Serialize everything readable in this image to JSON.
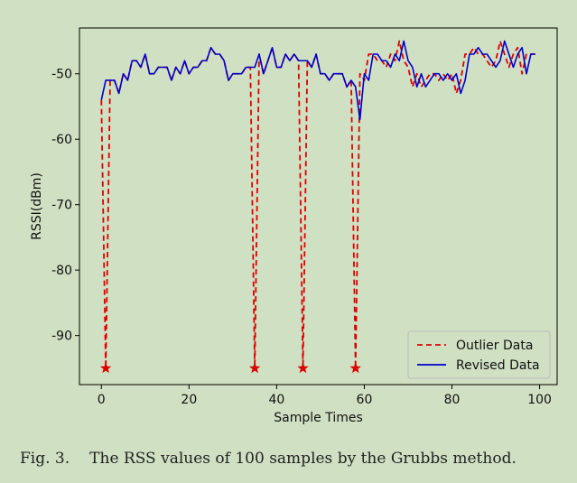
{
  "chart_data": {
    "type": "line",
    "xlabel": "Sample Times",
    "ylabel": "RSSI(dBm)",
    "xlim": [
      -5,
      104
    ],
    "ylim": [
      -97.5,
      -43
    ],
    "x_ticks": [
      0,
      20,
      40,
      60,
      80,
      100
    ],
    "y_ticks": [
      -90,
      -80,
      -70,
      -60,
      -50
    ],
    "legend_position": "lower-right",
    "series": [
      {
        "name": "Outlier Data",
        "style": "dashed",
        "color": "#dd0000",
        "x": [
          0,
          1,
          2,
          3,
          4,
          5,
          6,
          7,
          8,
          9,
          10,
          11,
          12,
          13,
          14,
          15,
          16,
          17,
          18,
          19,
          20,
          21,
          22,
          23,
          24,
          25,
          26,
          27,
          28,
          29,
          30,
          31,
          32,
          33,
          34,
          35,
          36,
          37,
          38,
          39,
          40,
          41,
          42,
          43,
          44,
          45,
          46,
          47,
          48,
          49,
          50,
          51,
          52,
          53,
          54,
          55,
          56,
          57,
          58,
          59,
          60,
          61,
          62,
          63,
          64,
          65,
          66,
          67,
          68,
          69,
          70,
          71,
          72,
          73,
          74,
          75,
          76,
          77,
          78,
          79,
          80,
          81,
          82,
          83,
          84,
          85,
          86,
          87,
          88,
          89,
          90,
          91,
          92,
          93,
          94,
          95,
          96,
          97,
          98,
          99
        ],
        "values": [
          -54,
          -95,
          -51,
          -51,
          -53,
          -50,
          -51,
          -48,
          -48,
          -49,
          -47,
          -50,
          -50,
          -49,
          -49,
          -49,
          -51,
          -49,
          -50,
          -48,
          -50,
          -49,
          -49,
          -48,
          -48,
          -46,
          -47,
          -47,
          -48,
          -51,
          -50,
          -50,
          -50,
          -49,
          -49,
          -95,
          -47,
          -50,
          -48,
          -46,
          -49,
          -49,
          -47,
          -48,
          -47,
          -48,
          -95,
          -48,
          -49,
          -47,
          -50,
          -50,
          -51,
          -50,
          -50,
          -50,
          -52,
          -51,
          -95,
          -50,
          -51,
          -47,
          -47,
          -48,
          -48,
          -49,
          -47,
          -48,
          -45,
          -48,
          -49,
          -52,
          -50,
          -52,
          -51,
          -50,
          -50,
          -51,
          -50,
          -51,
          -50,
          -53,
          -51,
          -47,
          -47,
          -46,
          -47,
          -47,
          -48,
          -49,
          -48,
          -45,
          -47,
          -49,
          -47,
          -46,
          -50,
          -47,
          -47,
          -47
        ]
      },
      {
        "name": "Revised Data",
        "style": "solid",
        "color": "#0000cc",
        "x": [
          0,
          1,
          2,
          3,
          4,
          5,
          6,
          7,
          8,
          9,
          10,
          11,
          12,
          13,
          14,
          15,
          16,
          17,
          18,
          19,
          20,
          21,
          22,
          23,
          24,
          25,
          26,
          27,
          28,
          29,
          30,
          31,
          32,
          33,
          34,
          35,
          36,
          37,
          38,
          39,
          40,
          41,
          42,
          43,
          44,
          45,
          46,
          47,
          48,
          49,
          50,
          51,
          52,
          53,
          54,
          55,
          56,
          57,
          58,
          59,
          60,
          61,
          62,
          63,
          64,
          65,
          66,
          67,
          68,
          69,
          70,
          71,
          72,
          73,
          74,
          75,
          76,
          77,
          78,
          79,
          80,
          81,
          82,
          83,
          84,
          85,
          86,
          87,
          88,
          89,
          90,
          91,
          92,
          93,
          94,
          95,
          96,
          97,
          98,
          99
        ],
        "values": [
          -54,
          -51,
          -51,
          -51,
          -53,
          -50,
          -51,
          -48,
          -48,
          -49,
          -47,
          -50,
          -50,
          -49,
          -49,
          -49,
          -51,
          -49,
          -50,
          -48,
          -50,
          -49,
          -49,
          -48,
          -48,
          -46,
          -47,
          -47,
          -48,
          -51,
          -50,
          -50,
          -50,
          -49,
          -49,
          -49,
          -47,
          -50,
          -48,
          -46,
          -49,
          -49,
          -47,
          -48,
          -47,
          -48,
          -48,
          -48,
          -49,
          -47,
          -50,
          -50,
          -51,
          -50,
          -50,
          -50,
          -52,
          -51,
          -52,
          -57,
          -50,
          -51,
          -47,
          -47,
          -48,
          -48,
          -49,
          -47,
          -48,
          -45,
          -48,
          -49,
          -52,
          -50,
          -52,
          -51,
          -50,
          -50,
          -51,
          -50,
          -51,
          -50,
          -53,
          -51,
          -47,
          -47,
          -46,
          -47,
          -47,
          -48,
          -49,
          -48,
          -45,
          -47,
          -49,
          -47,
          -46,
          -50,
          -47,
          -47
        ]
      }
    ],
    "outlier_markers": {
      "marker": "star",
      "color": "#dd0000",
      "points": [
        [
          1,
          -95
        ],
        [
          35,
          -95
        ],
        [
          46,
          -95
        ],
        [
          58,
          -95
        ]
      ]
    }
  },
  "caption": {
    "label": "Fig. 3.",
    "text": "The RSS values of 100 samples by the Grubbs method."
  }
}
